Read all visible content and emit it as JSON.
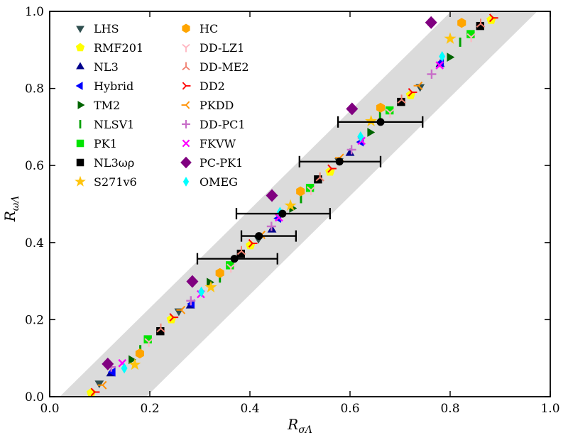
{
  "figure": {
    "bg": "#ffffff",
    "plot_border_color": "#000000"
  },
  "axes": {
    "xlabel_main": "R",
    "xlabel_sub": "σΛ",
    "ylabel_main": "R",
    "ylabel_sub": "ωΛ",
    "x_tick_labels": [
      "0.0",
      "0.2",
      "0.4",
      "0.6",
      "0.8",
      "1.0"
    ],
    "y_tick_labels": [
      "0.0",
      "0.2",
      "0.4",
      "0.6",
      "0.8",
      "1.0"
    ],
    "xlim": [
      0,
      1
    ],
    "ylim": [
      0,
      1
    ]
  },
  "legend": {
    "column1": [
      "LHS",
      "RMF201",
      "NL3",
      "Hybrid",
      "TM2",
      "NLSV1",
      "PK1",
      "NL3ωρ",
      "S271v6"
    ],
    "column2": [
      "HC",
      "DD-LZ1",
      "DD-ME2",
      "DD2",
      "PKDD",
      "DD-PC1",
      "FKVW",
      "PC-PK1",
      "OMEG"
    ]
  },
  "chart_data": {
    "type": "scatter",
    "title": "",
    "xlabel": "R_sigmaLambda",
    "ylabel": "R_omegaLambda",
    "xlim": [
      0,
      1
    ],
    "ylim": [
      0,
      1
    ],
    "grid": false,
    "legend_position": "upper-left, two columns, no frame",
    "band": {
      "comment": "gray correlation band, roughly y = 1.28x - 0.026 down to y = 1.28x - 0.247",
      "color": "#DBDBDB",
      "polygon": [
        [
          0.02,
          0.0
        ],
        [
          0.802,
          1.0
        ],
        [
          0.974,
          1.0
        ],
        [
          0.193,
          0.0
        ]
      ]
    },
    "series": [
      {
        "name": "LHS",
        "marker": "tri_down",
        "color": "#2F4F4F",
        "points": [
          [
            0.099,
            0.035
          ],
          [
            0.258,
            0.222
          ],
          [
            0.417,
            0.41
          ],
          [
            0.578,
            0.612
          ],
          [
            0.74,
            0.804
          ]
        ]
      },
      {
        "name": "RMF201",
        "marker": "pentagon",
        "color": "#FFFF00",
        "points": [
          [
            0.083,
            0.01
          ],
          [
            0.243,
            0.201
          ],
          [
            0.401,
            0.393
          ],
          [
            0.56,
            0.584
          ],
          [
            0.721,
            0.783
          ],
          [
            0.882,
            0.978
          ]
        ]
      },
      {
        "name": "NL3",
        "marker": "tri_up",
        "color": "#00008B",
        "points": [
          [
            0.122,
            0.06
          ],
          [
            0.281,
            0.236
          ],
          [
            0.444,
            0.433
          ],
          [
            0.6,
            0.632
          ],
          [
            0.78,
            0.863
          ]
        ]
      },
      {
        "name": "Hybrid",
        "marker": "tri_left",
        "color": "#0000FF",
        "points": [
          [
            0.126,
            0.064
          ],
          [
            0.284,
            0.241
          ],
          [
            0.457,
            0.463
          ],
          [
            0.622,
            0.661
          ],
          [
            0.782,
            0.867
          ]
        ]
      },
      {
        "name": "TM2",
        "marker": "tri_right",
        "color": "#006400",
        "points": [
          [
            0.163,
            0.096
          ],
          [
            0.319,
            0.297
          ],
          [
            0.484,
            0.489
          ],
          [
            0.64,
            0.686
          ],
          [
            0.799,
            0.881
          ]
        ]
      },
      {
        "name": "NLSV1",
        "marker": "vline",
        "color": "#00A000",
        "points": [
          [
            0.181,
            0.122
          ],
          [
            0.34,
            0.308
          ],
          [
            0.502,
            0.514
          ],
          [
            0.66,
            0.733
          ],
          [
            0.82,
            0.92
          ]
        ]
      },
      {
        "name": "PK1",
        "marker": "square",
        "color": "#00E400",
        "points": [
          [
            0.196,
            0.149
          ],
          [
            0.36,
            0.341
          ],
          [
            0.52,
            0.542
          ],
          [
            0.679,
            0.743
          ],
          [
            0.841,
            0.941
          ]
        ]
      },
      {
        "name": "NL3ωρ",
        "marker": "square",
        "color": "#000000",
        "points": [
          [
            0.221,
            0.17
          ],
          [
            0.382,
            0.371
          ],
          [
            0.536,
            0.564
          ],
          [
            0.702,
            0.765
          ],
          [
            0.86,
            0.962
          ]
        ]
      },
      {
        "name": "S271v6",
        "marker": "star",
        "color": "#FFC40C",
        "points": [
          [
            0.17,
            0.083
          ],
          [
            0.322,
            0.284
          ],
          [
            0.481,
            0.496
          ],
          [
            0.642,
            0.715
          ],
          [
            0.8,
            0.929
          ]
        ]
      },
      {
        "name": "HC",
        "marker": "hexagon",
        "color": "#FFA500",
        "points": [
          [
            0.18,
            0.112
          ],
          [
            0.34,
            0.321
          ],
          [
            0.501,
            0.533
          ],
          [
            0.661,
            0.75
          ],
          [
            0.823,
            0.97
          ]
        ]
      },
      {
        "name": "DD-LZ1",
        "marker": "y_up",
        "color": "#FFB6C1",
        "points": [
          [
            0.198,
            0.142
          ],
          [
            0.362,
            0.335
          ],
          [
            0.522,
            0.536
          ],
          [
            0.68,
            0.737
          ],
          [
            0.842,
            0.933
          ]
        ]
      },
      {
        "name": "DD-ME2",
        "marker": "y_down",
        "color": "#F08070",
        "points": [
          [
            0.222,
            0.177
          ],
          [
            0.383,
            0.378
          ],
          [
            0.54,
            0.569
          ],
          [
            0.703,
            0.771
          ],
          [
            0.861,
            0.968
          ]
        ]
      },
      {
        "name": "DD2",
        "marker": "y_left",
        "color": "#FF0000",
        "points": [
          [
            0.09,
            0.012
          ],
          [
            0.247,
            0.206
          ],
          [
            0.405,
            0.398
          ],
          [
            0.563,
            0.592
          ],
          [
            0.724,
            0.79
          ],
          [
            0.886,
            0.983
          ]
        ]
      },
      {
        "name": "PKDD",
        "marker": "y_right",
        "color": "#FF9000",
        "points": [
          [
            0.106,
            0.03
          ],
          [
            0.263,
            0.225
          ],
          [
            0.423,
            0.42
          ],
          [
            0.58,
            0.62
          ],
          [
            0.737,
            0.807
          ]
        ]
      },
      {
        "name": "DD-PC1",
        "marker": "plus",
        "color": "#C86EC8",
        "points": [
          [
            0.123,
            0.077
          ],
          [
            0.282,
            0.249
          ],
          [
            0.443,
            0.442
          ],
          [
            0.603,
            0.641
          ],
          [
            0.763,
            0.837
          ]
        ]
      },
      {
        "name": "FKVW",
        "marker": "x",
        "color": "#FF00FF",
        "points": [
          [
            0.145,
            0.087
          ],
          [
            0.302,
            0.266
          ],
          [
            0.458,
            0.465
          ],
          [
            0.623,
            0.664
          ],
          [
            0.779,
            0.86
          ]
        ]
      },
      {
        "name": "PC-PK1",
        "marker": "diamond",
        "color": "#800080",
        "points": [
          [
            0.116,
            0.085
          ],
          [
            0.285,
            0.299
          ],
          [
            0.444,
            0.522
          ],
          [
            0.604,
            0.747
          ],
          [
            0.762,
            0.971
          ]
        ]
      },
      {
        "name": "OMEG",
        "marker": "thin_diamond",
        "color": "#00FFFF",
        "points": [
          [
            0.149,
            0.074
          ],
          [
            0.303,
            0.272
          ],
          [
            0.46,
            0.479
          ],
          [
            0.621,
            0.675
          ],
          [
            0.784,
            0.883
          ]
        ]
      }
    ],
    "errorbars": {
      "color": "#000000",
      "marker": "circle",
      "points": [
        {
          "x": 0.369,
          "y": 0.358,
          "xlo": 0.295,
          "xhi": 0.455
        },
        {
          "x": 0.418,
          "y": 0.417,
          "xlo": 0.383,
          "xhi": 0.492
        },
        {
          "x": 0.465,
          "y": 0.475,
          "xlo": 0.373,
          "xhi": 0.56
        },
        {
          "x": 0.579,
          "y": 0.61,
          "xlo": 0.499,
          "xhi": 0.661
        },
        {
          "x": 0.661,
          "y": 0.713,
          "xlo": 0.576,
          "xhi": 0.745
        }
      ]
    }
  }
}
